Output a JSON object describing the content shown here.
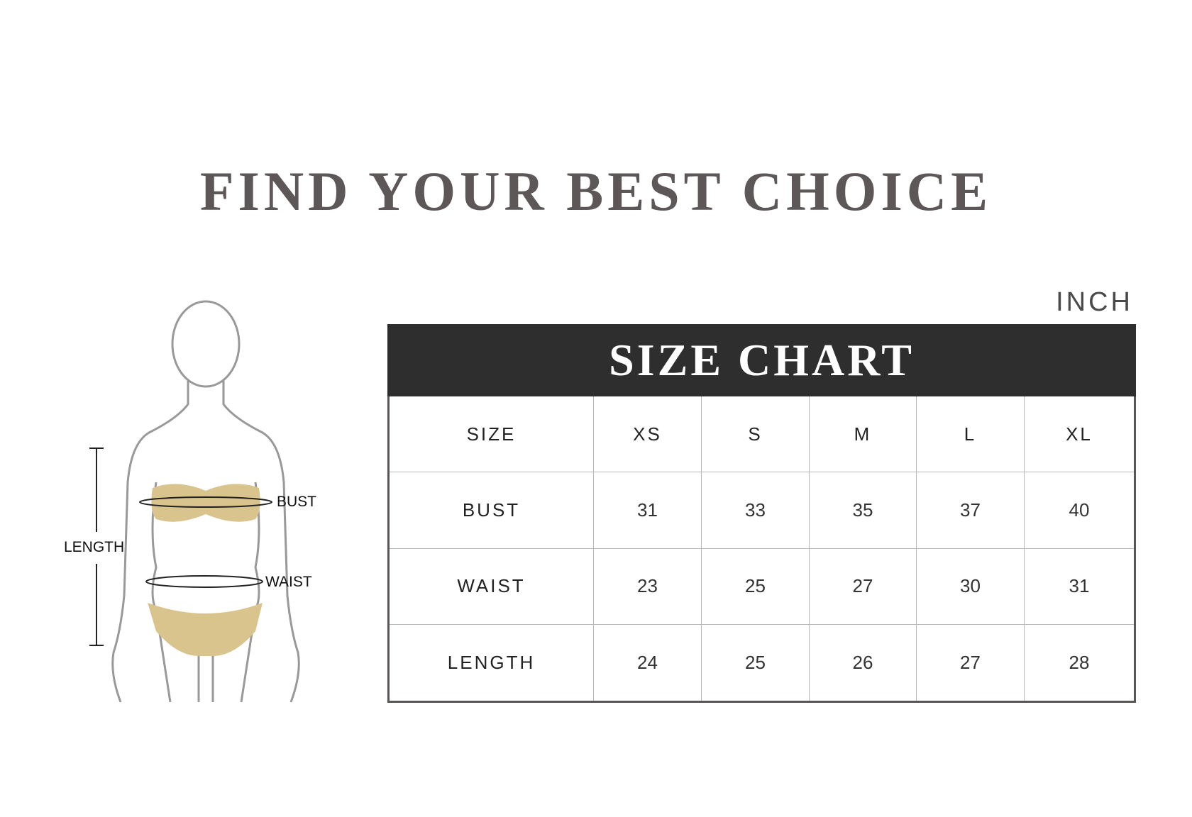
{
  "title": "FIND YOUR BEST CHOICE",
  "unit": "INCH",
  "table_title": "SIZE CHART",
  "figure_labels": {
    "bust": "BUST",
    "waist": "WAIST",
    "length": "LENGTH"
  },
  "colors": {
    "header_bg": "#2e2e2e",
    "garment": "#d9c48e",
    "title": "#5e5757"
  },
  "columns": [
    "SIZE",
    "XS",
    "S",
    "M",
    "L",
    "XL"
  ],
  "rows": [
    [
      "BUST",
      "31",
      "33",
      "35",
      "37",
      "40"
    ],
    [
      "WAIST",
      "23",
      "25",
      "27",
      "30",
      "31"
    ],
    [
      "LENGTH",
      "24",
      "25",
      "26",
      "27",
      "28"
    ]
  ]
}
